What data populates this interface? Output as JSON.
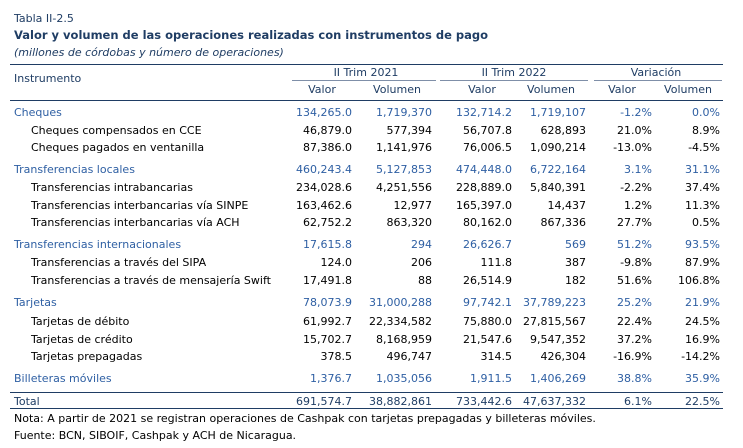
{
  "table_label": "Tabla II-2.5",
  "title": "Valor y volumen de las operaciones realizadas con instrumentos de pago",
  "subtitle": "(millones de córdobas y número de operaciones)",
  "columns": {
    "instrument": "Instrumento",
    "groups": [
      "II Trim 2021",
      "II Trim 2022",
      "Variación"
    ],
    "sub": [
      "Valor",
      "Volumen",
      "Valor",
      "Volumen",
      "Valor",
      "Volumen"
    ]
  },
  "rows": [
    {
      "kind": "cat",
      "name": "Cheques",
      "values": [
        "134,265.0",
        "1,719,370",
        "132,714.2",
        "1,719,107",
        "-1.2%",
        "0.0%"
      ]
    },
    {
      "kind": "sub",
      "name": "Cheques compensados en CCE",
      "values": [
        "46,879.0",
        "577,394",
        "56,707.8",
        "628,893",
        "21.0%",
        "8.9%"
      ]
    },
    {
      "kind": "sub",
      "name": "Cheques pagados en ventanilla",
      "values": [
        "87,386.0",
        "1,141,976",
        "76,006.5",
        "1,090,214",
        "-13.0%",
        "-4.5%"
      ]
    },
    {
      "kind": "cat",
      "name": "Transferencias locales",
      "values": [
        "460,243.4",
        "5,127,853",
        "474,448.0",
        "6,722,164",
        "3.1%",
        "31.1%"
      ]
    },
    {
      "kind": "sub",
      "name": "Transferencias intrabancarias",
      "values": [
        "234,028.6",
        "4,251,556",
        "228,889.0",
        "5,840,391",
        "-2.2%",
        "37.4%"
      ]
    },
    {
      "kind": "sub",
      "name": "Transferencias interbancarias vía SINPE",
      "values": [
        "163,462.6",
        "12,977",
        "165,397.0",
        "14,437",
        "1.2%",
        "11.3%"
      ]
    },
    {
      "kind": "sub",
      "name": "Transferencias interbancarias vía ACH",
      "values": [
        "62,752.2",
        "863,320",
        "80,162.0",
        "867,336",
        "27.7%",
        "0.5%"
      ]
    },
    {
      "kind": "cat",
      "name": "Transferencias internacionales",
      "values": [
        "17,615.8",
        "294",
        "26,626.7",
        "569",
        "51.2%",
        "93.5%"
      ]
    },
    {
      "kind": "sub",
      "name": "Transferencias a través del SIPA",
      "values": [
        "124.0",
        "206",
        "111.8",
        "387",
        "-9.8%",
        "87.9%"
      ]
    },
    {
      "kind": "sub",
      "name": "Transferencias a través de mensajería Swift",
      "values": [
        "17,491.8",
        "88",
        "26,514.9",
        "182",
        "51.6%",
        "106.8%"
      ]
    },
    {
      "kind": "cat",
      "name": "Tarjetas",
      "values": [
        "78,073.9",
        "31,000,288",
        "97,742.1",
        "37,789,223",
        "25.2%",
        "21.9%"
      ]
    },
    {
      "kind": "sub",
      "name": "Tarjetas de débito",
      "values": [
        "61,992.7",
        "22,334,582",
        "75,880.0",
        "27,815,567",
        "22.4%",
        "24.5%"
      ]
    },
    {
      "kind": "sub",
      "name": "Tarjetas de crédito",
      "values": [
        "15,702.7",
        "8,168,959",
        "21,547.6",
        "9,547,352",
        "37.2%",
        "16.9%"
      ]
    },
    {
      "kind": "sub",
      "name": "Tarjetas prepagadas",
      "values": [
        "378.5",
        "496,747",
        "314.5",
        "426,304",
        "-16.9%",
        "-14.2%"
      ]
    },
    {
      "kind": "cat",
      "name": "Billeteras móviles",
      "values": [
        "1,376.7",
        "1,035,056",
        "1,911.5",
        "1,406,269",
        "38.8%",
        "35.9%"
      ]
    },
    {
      "kind": "tot",
      "name": "Total",
      "values": [
        "691,574.7",
        "38,882,861",
        "733,442.6",
        "47,637,332",
        "6.1%",
        "22.5%"
      ]
    }
  ],
  "note": "Nota: A partir de 2021 se registran operaciones de Cashpak con tarjetas prepagadas y billeteras móviles.",
  "source": "Fuente: BCN, SIBOIF, Cashpak y ACH de Nicaragua."
}
